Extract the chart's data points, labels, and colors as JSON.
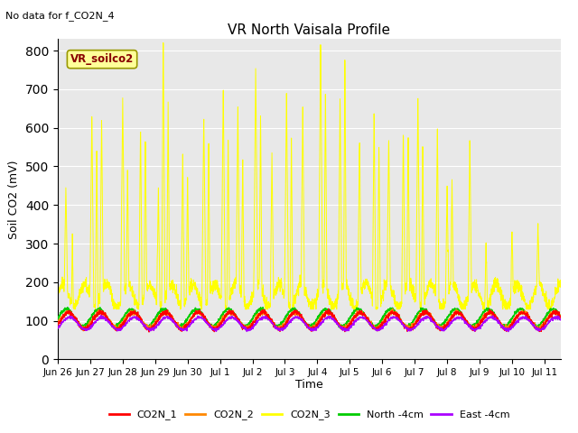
{
  "title": "VR North Vaisala Profile",
  "subtitle": "No data for f_CO2N_4",
  "ylabel": "Soil CO2 (mV)",
  "xlabel": "Time",
  "xlim_days": [
    0,
    15.5
  ],
  "ylim": [
    0,
    830
  ],
  "yticks": [
    0,
    100,
    200,
    300,
    400,
    500,
    600,
    700,
    800
  ],
  "background_color": "#e8e8e8",
  "fig_background": "#ffffff",
  "legend_entries": [
    "CO2N_1",
    "CO2N_2",
    "CO2N_3",
    "North -4cm",
    "East -4cm"
  ],
  "legend_colors": [
    "#ff0000",
    "#ff8800",
    "#ffff00",
    "#00cc00",
    "#aa00ff"
  ],
  "label_box_text": "VR_soilco2",
  "label_box_color": "#ffff99",
  "label_box_edge": "#999900",
  "label_box_text_color": "#880000",
  "xtick_labels": [
    "Jun 26",
    "Jun 27",
    "Jun 28",
    "Jun 29",
    "Jun 30",
    "Jul 1",
    "Jul 2",
    "Jul 3",
    "Jul 4",
    "Jul 5",
    "Jul 6",
    "Jul 7",
    "Jul 8",
    "Jul 9",
    "Jul 10",
    "Jul 11"
  ],
  "xtick_positions": [
    0,
    1,
    2,
    3,
    4,
    5,
    6,
    7,
    8,
    9,
    10,
    11,
    12,
    13,
    14,
    15
  ]
}
